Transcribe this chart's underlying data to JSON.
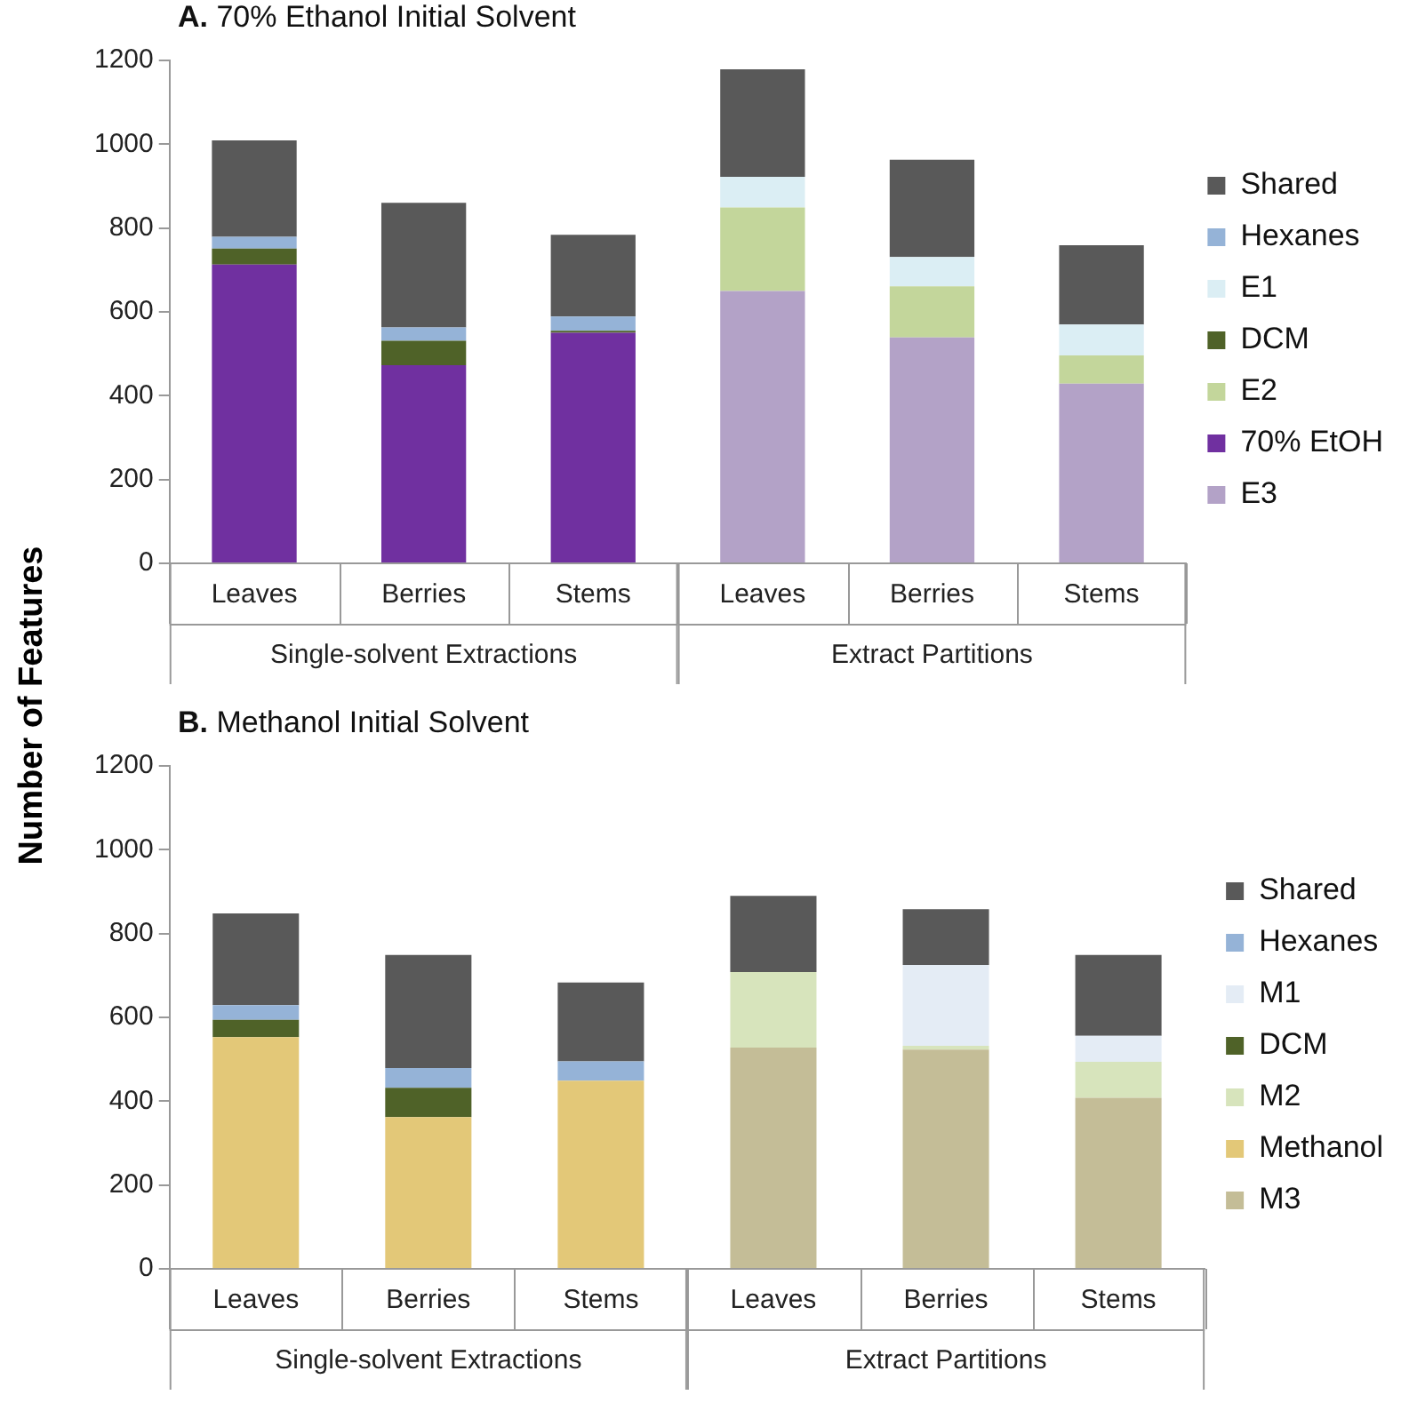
{
  "chart_data": [
    {
      "type": "bar",
      "title": "A. 70% Ethanol Initial Solvent",
      "ylabel": "Number of Features",
      "stacked": true,
      "legend": "right",
      "grid": false,
      "categories": [
        "Leaves",
        "Berries",
        "Stems",
        "Leaves",
        "Berries",
        "Stems"
      ],
      "annotations": [
        "Single-solvent Extractions",
        "Extract Partitions"
      ],
      "ylim": [
        0,
        1200
      ],
      "yticks": [
        0,
        200,
        400,
        600,
        800,
        1000,
        1200
      ],
      "series": [
        {
          "name": "E3",
          "color": "#b3a2c7",
          "values": [
            null,
            null,
            null,
            650,
            539,
            429
          ]
        },
        {
          "name": "70% EtOH",
          "color": "#7030a0",
          "values": [
            713,
            473,
            550,
            null,
            null,
            null
          ]
        },
        {
          "name": "E2",
          "color": "#c3d69b",
          "values": [
            null,
            null,
            null,
            199,
            122,
            67
          ]
        },
        {
          "name": "DCM",
          "color": "#4f6228",
          "values": [
            38,
            58,
            5,
            null,
            null,
            null
          ]
        },
        {
          "name": "E1",
          "color": "#dbeef4",
          "values": [
            null,
            null,
            null,
            73,
            70,
            74
          ]
        },
        {
          "name": "Hexanes",
          "color": "#95b3d7",
          "values": [
            28,
            32,
            34,
            null,
            null,
            null
          ]
        },
        {
          "name": "Shared",
          "color": "#595959",
          "values": [
            230,
            297,
            195,
            257,
            232,
            189
          ]
        }
      ]
    },
    {
      "type": "bar",
      "title": "B. Methanol Initial Solvent",
      "stacked": true,
      "legend": "right",
      "grid": false,
      "categories": [
        "Leaves",
        "Berries",
        "Stems",
        "Leaves",
        "Berries",
        "Stems"
      ],
      "annotations": [
        "Single-solvent Extractions",
        "Extract Partitions"
      ],
      "ylim": [
        0,
        1200
      ],
      "yticks": [
        0,
        200,
        400,
        600,
        800,
        1000,
        1200
      ],
      "series": [
        {
          "name": "M3",
          "color": "#c4bd97",
          "values": [
            null,
            null,
            null,
            528,
            523,
            408
          ]
        },
        {
          "name": "Methanol",
          "color": "#e3c878",
          "values": [
            553,
            362,
            449,
            null,
            null,
            null
          ]
        },
        {
          "name": "M2",
          "color": "#d7e4bc",
          "values": [
            null,
            null,
            null,
            180,
            9,
            86
          ]
        },
        {
          "name": "DCM",
          "color": "#4f6228",
          "values": [
            41,
            70,
            null,
            null,
            null,
            null
          ]
        },
        {
          "name": "M1",
          "color": "#e4ecf5",
          "values": [
            null,
            null,
            null,
            null,
            193,
            62
          ]
        },
        {
          "name": "Hexanes",
          "color": "#95b3d7",
          "values": [
            35,
            47,
            46,
            null,
            null,
            null
          ]
        },
        {
          "name": "Shared",
          "color": "#595959",
          "values": [
            219,
            270,
            188,
            182,
            133,
            193
          ]
        }
      ]
    }
  ]
}
